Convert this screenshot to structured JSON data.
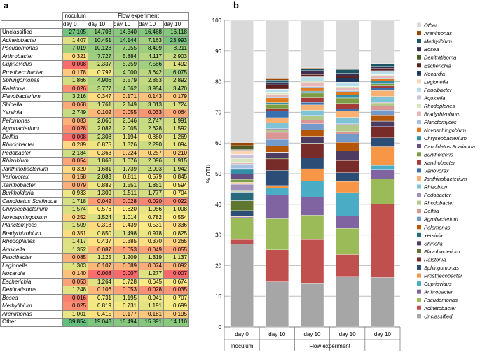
{
  "panel_a_label": "a",
  "panel_b_label": "b",
  "table": {
    "header_inoculum": "Inoculum",
    "header_flow": "Flow experiment",
    "subheaders": [
      "day 0",
      "day 10",
      "day 10",
      "day 10",
      "day 10"
    ],
    "rows": [
      {
        "name": "Unclassified",
        "italic": false,
        "values": [
          "27.105",
          "14.703",
          "14.340",
          "16.468",
          "16.118"
        ]
      },
      {
        "name": "Acinetobacter",
        "italic": true,
        "values": [
          "1.407",
          "10.451",
          "14.144",
          "7.163",
          "23.993"
        ]
      },
      {
        "name": "Pseudomonas",
        "italic": true,
        "values": [
          "7.019",
          "10.128",
          "7.955",
          "8.499",
          "8.211"
        ]
      },
      {
        "name": "Arthrobacter",
        "italic": true,
        "values": [
          "0.321",
          "7.727",
          "5.884",
          "4.117",
          "2.903"
        ]
      },
      {
        "name": "Cupriavidus",
        "italic": true,
        "values": [
          "0.008",
          "2.337",
          "5.259",
          "7.586",
          "1.492"
        ]
      },
      {
        "name": "Prosthecobacter",
        "italic": true,
        "values": [
          "0.178",
          "0.792",
          "4.000",
          "3.642",
          "6.075"
        ]
      },
      {
        "name": "Sphingomonas",
        "italic": true,
        "values": [
          "1.866",
          "4.906",
          "3.579",
          "2.853",
          "2.892"
        ]
      },
      {
        "name": "Ralstonia",
        "italic": true,
        "values": [
          "0.026",
          "3.777",
          "4.662",
          "3.954",
          "3.470"
        ]
      },
      {
        "name": "Flavobacterium",
        "italic": true,
        "values": [
          "3.216",
          "0.347",
          "0.171",
          "0.143",
          "0.179"
        ]
      },
      {
        "name": "Shinella",
        "italic": true,
        "values": [
          "0.068",
          "1.761",
          "2.149",
          "3.013",
          "1.724"
        ]
      },
      {
        "name": "Yersinia",
        "italic": true,
        "values": [
          "2.749",
          "0.102",
          "0.055",
          "0.033",
          "0.064"
        ]
      },
      {
        "name": "Pelomonas",
        "italic": true,
        "values": [
          "0.083",
          "2.066",
          "2.046",
          "2.747",
          "1.991"
        ]
      },
      {
        "name": "Agrobacterium",
        "italic": true,
        "values": [
          "0.028",
          "2.082",
          "2.005",
          "2.628",
          "1.592"
        ]
      },
      {
        "name": "Delftia",
        "italic": true,
        "values": [
          "0.008",
          "2.308",
          "1.194",
          "0.880",
          "1.269"
        ]
      },
      {
        "name": "Rhodobacter",
        "italic": true,
        "values": [
          "0.289",
          "0.875",
          "1.326",
          "2.290",
          "1.094"
        ]
      },
      {
        "name": "Pedobacter",
        "italic": true,
        "values": [
          "2.184",
          "0.363",
          "0.224",
          "0.257",
          "0.210"
        ]
      },
      {
        "name": "Rhizobium",
        "italic": true,
        "values": [
          "0.054",
          "1.868",
          "1.676",
          "2.096",
          "1.915"
        ]
      },
      {
        "name": "Janthinobacterium",
        "italic": true,
        "values": [
          "0.320",
          "1.681",
          "1.739",
          "2.093",
          "1.942"
        ]
      },
      {
        "name": "Variovorax",
        "italic": true,
        "values": [
          "0.158",
          "2.083",
          "0.811",
          "0.579",
          "0.845"
        ]
      },
      {
        "name": "Xanthobacter",
        "italic": true,
        "values": [
          "0.079",
          "0.882",
          "1.551",
          "1.851",
          "0.594"
        ]
      },
      {
        "name": "Burkholderia",
        "italic": true,
        "values": [
          "0.933",
          "1.309",
          "1.511",
          "1.777",
          "0.704"
        ]
      },
      {
        "name": "Candidatus Scalindua",
        "italic": true,
        "values": [
          "1.718",
          "0.042",
          "0.028",
          "0.020",
          "0.022"
        ]
      },
      {
        "name": "Chryseobacterium",
        "italic": true,
        "values": [
          "1.574",
          "0.576",
          "0.620",
          "1.056",
          "1.008"
        ]
      },
      {
        "name": "Novosphingobium",
        "italic": true,
        "values": [
          "0.252",
          "1.524",
          "1.014",
          "0.782",
          "0.554"
        ]
      },
      {
        "name": "Planctomyces",
        "italic": true,
        "values": [
          "1.509",
          "0.318",
          "0.439",
          "0.531",
          "0.336"
        ]
      },
      {
        "name": "Bradyrhizobium",
        "italic": true,
        "values": [
          "0.351",
          "0.850",
          "1.498",
          "0.978",
          "0.825"
        ]
      },
      {
        "name": "Rhodoplanes",
        "italic": true,
        "values": [
          "1.417",
          "0.437",
          "0.385",
          "0.370",
          "0.265"
        ]
      },
      {
        "name": "Aquicella",
        "italic": true,
        "values": [
          "1.352",
          "0.087",
          "0.053",
          "0.049",
          "0.055"
        ]
      },
      {
        "name": "Paucibacter",
        "italic": true,
        "values": [
          "0.085",
          "1.125",
          "1.209",
          "1.319",
          "1.137"
        ]
      },
      {
        "name": "Legionella",
        "italic": true,
        "values": [
          "1.303",
          "0.107",
          "0.089",
          "0.074",
          "0.092"
        ]
      },
      {
        "name": "Nocardia",
        "italic": true,
        "values": [
          "0.140",
          "0.008",
          "0.007",
          "1.277",
          "0.007"
        ]
      },
      {
        "name": "Escherichia",
        "italic": true,
        "values": [
          "0.053",
          "1.264",
          "0.728",
          "0.645",
          "0.674"
        ]
      },
      {
        "name": "Denitratisoma",
        "italic": true,
        "values": [
          "1.248",
          "0.106",
          "0.053",
          "0.028",
          "0.035"
        ]
      },
      {
        "name": "Bosea",
        "italic": true,
        "values": [
          "0.016",
          "0.731",
          "1.195",
          "0.941",
          "0.707"
        ]
      },
      {
        "name": "Methylibium",
        "italic": true,
        "values": [
          "0.025",
          "0.819",
          "0.731",
          "1.191",
          "0.699"
        ]
      },
      {
        "name": "Arenimonas",
        "italic": true,
        "values": [
          "1.001",
          "0.415",
          "0.177",
          "0.181",
          "0.195"
        ]
      },
      {
        "name": "Other",
        "italic": false,
        "values": [
          "39.854",
          "19.043",
          "15.494",
          "15.891",
          "14.110"
        ]
      }
    ]
  },
  "chart_data": {
    "type": "bar",
    "stacked": true,
    "ylabel": "% OTU",
    "ylim": [
      0,
      100
    ],
    "yticks": [
      0,
      10,
      20,
      30,
      40,
      50,
      60,
      70,
      80,
      90,
      100
    ],
    "grid": true,
    "categories": [
      "day 0",
      "day 10",
      "day 10",
      "day 10",
      "day 10"
    ],
    "group_labels": [
      {
        "label": "Inoculum",
        "span": [
          0,
          0
        ]
      },
      {
        "label": "Flow experiment",
        "span": [
          1,
          4
        ]
      }
    ],
    "legend_position": "right",
    "series": [
      {
        "name": "Unclassified",
        "color": "#a6a6a6",
        "values": [
          27.105,
          14.703,
          14.34,
          16.468,
          16.118
        ]
      },
      {
        "name": "Acinetobacter",
        "color": "#c0504d",
        "values": [
          1.407,
          10.451,
          14.144,
          7.163,
          23.993
        ]
      },
      {
        "name": "Pseudomonas",
        "color": "#9bbb59",
        "values": [
          7.019,
          10.128,
          7.955,
          8.499,
          8.211
        ]
      },
      {
        "name": "Arthrobacter",
        "color": "#8064a2",
        "values": [
          0.321,
          7.727,
          5.884,
          4.117,
          2.903
        ]
      },
      {
        "name": "Cupriavidus",
        "color": "#4bacc6",
        "values": [
          0.008,
          2.337,
          5.259,
          7.586,
          1.492
        ]
      },
      {
        "name": "Prosthecobacter",
        "color": "#f79646",
        "values": [
          0.178,
          0.792,
          4.0,
          3.642,
          6.075
        ]
      },
      {
        "name": "Sphingomonas",
        "color": "#2c4d75",
        "values": [
          1.866,
          4.906,
          3.579,
          2.853,
          2.892
        ]
      },
      {
        "name": "Ralstonia",
        "color": "#772c2a",
        "values": [
          0.026,
          3.777,
          4.662,
          3.954,
          3.47
        ]
      },
      {
        "name": "Flavobacterium",
        "color": "#5f7530",
        "values": [
          3.216,
          0.347,
          0.171,
          0.143,
          0.179
        ]
      },
      {
        "name": "Shinella",
        "color": "#4d3b62",
        "values": [
          0.068,
          1.761,
          2.149,
          3.013,
          1.724
        ]
      },
      {
        "name": "Yersinia",
        "color": "#276a7c",
        "values": [
          2.749,
          0.102,
          0.055,
          0.033,
          0.064
        ]
      },
      {
        "name": "Pelomonas",
        "color": "#b65708",
        "values": [
          0.083,
          2.066,
          2.046,
          2.747,
          1.991
        ]
      },
      {
        "name": "Agrobacterium",
        "color": "#729aca",
        "values": [
          0.028,
          2.082,
          2.005,
          2.628,
          1.592
        ]
      },
      {
        "name": "Delftia",
        "color": "#d99694",
        "values": [
          0.008,
          2.308,
          1.194,
          0.88,
          1.269
        ]
      },
      {
        "name": "Rhodobacter",
        "color": "#b3c98c",
        "values": [
          0.289,
          0.875,
          1.326,
          2.29,
          1.094
        ]
      },
      {
        "name": "Pedobacter",
        "color": "#a390b9",
        "values": [
          2.184,
          0.363,
          0.224,
          0.257,
          0.21
        ]
      },
      {
        "name": "Rhizobium",
        "color": "#7ec4d6",
        "values": [
          0.054,
          1.868,
          1.676,
          2.096,
          1.915
        ]
      },
      {
        "name": "Janthinobacterium",
        "color": "#f9b073",
        "values": [
          0.32,
          1.681,
          1.739,
          2.093,
          1.942
        ]
      },
      {
        "name": "Variovorax",
        "color": "#3a6fad",
        "values": [
          0.158,
          2.083,
          0.811,
          0.579,
          0.845
        ]
      },
      {
        "name": "Xanthobacter",
        "color": "#a33b38",
        "values": [
          0.079,
          0.882,
          1.551,
          1.851,
          0.594
        ]
      },
      {
        "name": "Burkholderia",
        "color": "#7e9c43",
        "values": [
          0.933,
          1.309,
          1.511,
          1.777,
          0.704
        ]
      },
      {
        "name": "Candidatus Scalindua",
        "color": "#664f83",
        "values": [
          1.718,
          0.042,
          0.028,
          0.02,
          0.022
        ]
      },
      {
        "name": "Chryseobacterium",
        "color": "#348fa6",
        "values": [
          1.574,
          0.576,
          0.62,
          1.056,
          1.008
        ]
      },
      {
        "name": "Novosphingobium",
        "color": "#e0781d",
        "values": [
          0.252,
          1.524,
          1.014,
          0.782,
          0.554
        ]
      },
      {
        "name": "Planctomyces",
        "color": "#a7c0de",
        "values": [
          1.509,
          0.318,
          0.439,
          0.531,
          0.336
        ]
      },
      {
        "name": "Bradyrhizobium",
        "color": "#e6b9b8",
        "values": [
          0.351,
          0.85,
          1.498,
          0.978,
          0.825
        ]
      },
      {
        "name": "Rhodoplanes",
        "color": "#d7e4bd",
        "values": [
          1.417,
          0.437,
          0.385,
          0.37,
          0.265
        ]
      },
      {
        "name": "Aquicella",
        "color": "#ccc1da",
        "values": [
          1.352,
          0.087,
          0.053,
          0.049,
          0.055
        ]
      },
      {
        "name": "Paucibacter",
        "color": "#b7dde8",
        "values": [
          0.085,
          1.125,
          1.209,
          1.319,
          1.137
        ]
      },
      {
        "name": "Legionella",
        "color": "#fcd5b5",
        "values": [
          1.303,
          0.107,
          0.089,
          0.074,
          0.092
        ]
      },
      {
        "name": "Nocardia",
        "color": "#1f3a5e",
        "values": [
          0.14,
          0.008,
          0.007,
          1.277,
          0.007
        ]
      },
      {
        "name": "Escherichia",
        "color": "#5c1f1e",
        "values": [
          0.053,
          1.264,
          0.728,
          0.645,
          0.674
        ]
      },
      {
        "name": "Denitratisoma",
        "color": "#4a5c24",
        "values": [
          1.248,
          0.106,
          0.053,
          0.028,
          0.035
        ]
      },
      {
        "name": "Bosea",
        "color": "#3e2f50",
        "values": [
          0.016,
          0.731,
          1.195,
          0.941,
          0.707
        ]
      },
      {
        "name": "Methylibium",
        "color": "#1e5566",
        "values": [
          0.025,
          0.819,
          0.731,
          1.191,
          0.699
        ]
      },
      {
        "name": "Arenimonas",
        "color": "#974706",
        "values": [
          1.001,
          0.415,
          0.177,
          0.181,
          0.195
        ]
      },
      {
        "name": "Other",
        "color": "#d9d9d9",
        "values": [
          39.854,
          19.043,
          15.494,
          15.891,
          14.11
        ]
      }
    ]
  }
}
